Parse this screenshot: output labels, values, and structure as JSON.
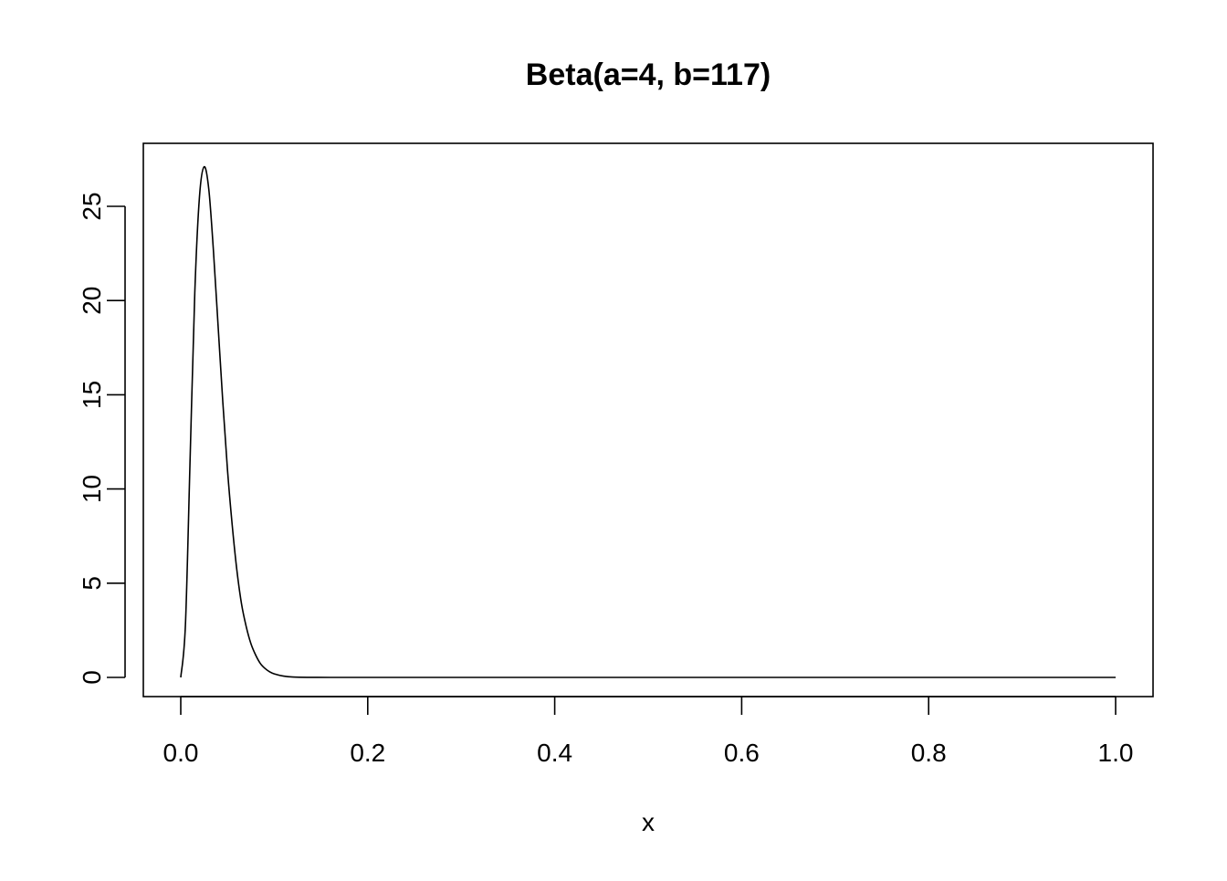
{
  "chart_data": {
    "type": "line",
    "title": "Beta(a=4, b=117)",
    "xlabel": "x",
    "ylabel": "",
    "xlim": [
      0.0,
      1.0
    ],
    "ylim": [
      0,
      27.2
    ],
    "x_ticks": [
      "0.0",
      "0.2",
      "0.4",
      "0.6",
      "0.8",
      "1.0"
    ],
    "y_ticks": [
      "0",
      "5",
      "10",
      "15",
      "20",
      "25"
    ],
    "grid": false,
    "series": [
      {
        "color": "#000000",
        "x": [
          0.0,
          0.005,
          0.01,
          0.015,
          0.02,
          0.025,
          0.03,
          0.035,
          0.04,
          0.045,
          0.05,
          0.055,
          0.06,
          0.065,
          0.07,
          0.075,
          0.08,
          0.085,
          0.09,
          0.095,
          0.1,
          0.11,
          0.12,
          0.14,
          0.16,
          0.2,
          0.3,
          0.4,
          0.5,
          0.6,
          0.7,
          0.8,
          0.9,
          1.0
        ],
        "y": [
          0.0,
          2.8,
          11.6,
          20.4,
          25.5,
          27.1,
          25.9,
          22.6,
          18.6,
          14.6,
          11.0,
          8.1,
          5.7,
          3.9,
          2.7,
          1.8,
          1.2,
          0.75,
          0.48,
          0.3,
          0.19,
          0.07,
          0.02,
          0.002,
          0.0,
          0.0,
          0.0,
          0.0,
          0.0,
          0.0,
          0.0,
          0.0,
          0.0,
          0.0
        ]
      }
    ]
  }
}
